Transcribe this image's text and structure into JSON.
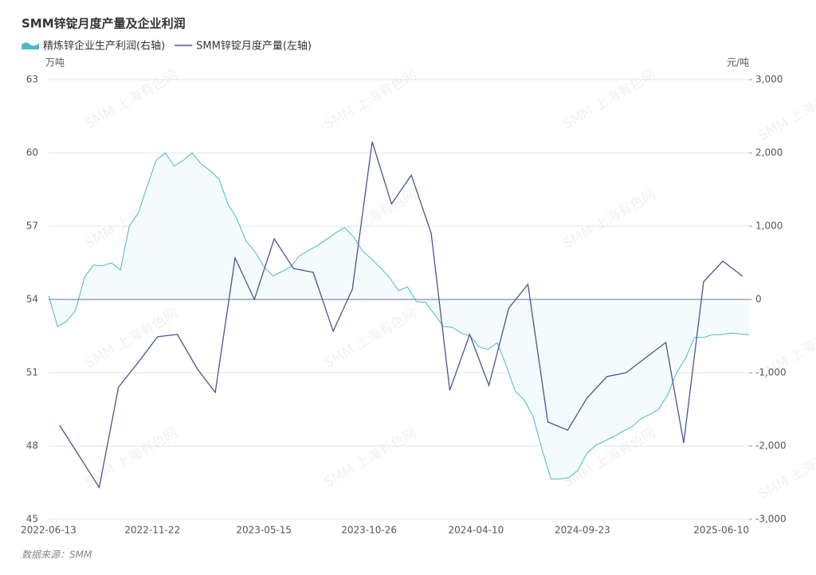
{
  "chart_data": {
    "type": "combo",
    "title": "SMM锌锭月度产量及企业利润",
    "y_label": "万吨",
    "y2_label": "元/吨",
    "source": "数据来源：SMM",
    "watermark": "SMM 上海有色网",
    "xlim": [
      "2022-06-13",
      "2025-06-10"
    ],
    "xticks": [
      "2022-06-13",
      "2022-11-22",
      "2023-05-15",
      "2023-10-26",
      "2024-04-10",
      "2024-09-23",
      "2025-06-10"
    ],
    "ylim": [
      45,
      63
    ],
    "yticks": [
      45,
      48,
      51,
      54,
      57,
      60,
      63
    ],
    "y2lim": [
      -3000,
      3000
    ],
    "y2ticks": [
      {
        "value": -3000,
        "label": "-3,000"
      },
      {
        "value": -2000,
        "label": "-2,000"
      },
      {
        "value": -1000,
        "label": "-1,000"
      },
      0,
      {
        "value": 1000,
        "label": "1,000"
      },
      {
        "value": 2000,
        "label": "2,000"
      },
      {
        "value": 3000,
        "label": "3,000"
      }
    ],
    "grid": true,
    "series": [
      {
        "name": "精炼锌企业生产利润(右轴)",
        "type": "area",
        "axis": "y2",
        "color": "#4bb8c8",
        "x": [
          "2022-06-13",
          "2022-06-27",
          "2022-07-11",
          "2022-07-25",
          "2022-08-08",
          "2022-08-22",
          "2022-09-05",
          "2022-09-19",
          "2022-10-03",
          "2022-10-17",
          "2022-10-31",
          "2022-11-14",
          "2022-11-28",
          "2022-12-12",
          "2022-12-26",
          "2023-01-09",
          "2023-01-23",
          "2023-02-06",
          "2023-02-20",
          "2023-03-06",
          "2023-03-20",
          "2023-04-03",
          "2023-04-17",
          "2023-05-01",
          "2023-05-15",
          "2023-05-29",
          "2023-06-12",
          "2023-06-26",
          "2023-07-10",
          "2023-07-24",
          "2023-08-07",
          "2023-08-21",
          "2023-09-04",
          "2023-09-18",
          "2023-10-02",
          "2023-10-16",
          "2023-10-30",
          "2023-11-13",
          "2023-11-27",
          "2023-12-11",
          "2023-12-25",
          "2024-01-08",
          "2024-01-22",
          "2024-02-05",
          "2024-02-19",
          "2024-03-04",
          "2024-03-18",
          "2024-04-01",
          "2024-04-15",
          "2024-04-29",
          "2024-05-13",
          "2024-05-27",
          "2024-06-10",
          "2024-06-24",
          "2024-07-08",
          "2024-07-22",
          "2024-08-05",
          "2024-08-19",
          "2024-09-02",
          "2024-09-16",
          "2024-09-30",
          "2024-10-14",
          "2024-10-28",
          "2024-11-11",
          "2024-11-25",
          "2024-12-09",
          "2024-12-23",
          "2025-01-06",
          "2025-01-20",
          "2025-02-03",
          "2025-02-17",
          "2025-03-03",
          "2025-03-17",
          "2025-03-31",
          "2025-04-14",
          "2025-04-28",
          "2025-05-12",
          "2025-05-26",
          "2025-06-10"
        ],
        "values": [
          50,
          -370,
          -300,
          -150,
          300,
          470,
          460,
          500,
          400,
          1000,
          1180,
          1550,
          1900,
          2000,
          1820,
          1900,
          2000,
          1850,
          1760,
          1640,
          1300,
          1100,
          800,
          650,
          450,
          320,
          380,
          450,
          600,
          670,
          740,
          820,
          910,
          980,
          850,
          660,
          550,
          430,
          300,
          120,
          170,
          -30,
          -40,
          -200,
          -370,
          -380,
          -460,
          -500,
          -650,
          -680,
          -590,
          -900,
          -1250,
          -1370,
          -1600,
          -2050,
          -2450,
          -2450,
          -2430,
          -2330,
          -2100,
          -1990,
          -1930,
          -1870,
          -1800,
          -1740,
          -1630,
          -1570,
          -1500,
          -1300,
          -1000,
          -800,
          -520,
          -520,
          -480,
          -480,
          -460,
          -470,
          -480
        ]
      },
      {
        "name": "SMM锌锭月度产量(左轴)",
        "type": "line",
        "axis": "y",
        "color": "#4a5590",
        "x": [
          "2022-06-30",
          "2022-07-31",
          "2022-08-31",
          "2022-09-30",
          "2022-10-31",
          "2022-11-30",
          "2022-12-31",
          "2023-01-31",
          "2023-02-28",
          "2023-03-31",
          "2023-04-30",
          "2023-05-31",
          "2023-06-30",
          "2023-07-31",
          "2023-08-31",
          "2023-09-30",
          "2023-10-31",
          "2023-11-30",
          "2023-12-31",
          "2024-01-31",
          "2024-02-29",
          "2024-03-31",
          "2024-04-30",
          "2024-05-31",
          "2024-06-30",
          "2024-07-31",
          "2024-08-31",
          "2024-09-30",
          "2024-10-31",
          "2024-11-30",
          "2024-12-31",
          "2025-01-31",
          "2025-02-28",
          "2025-03-31",
          "2025-04-30",
          "2025-05-31"
        ],
        "values": [
          48.85,
          47.58,
          46.3,
          50.41,
          51.43,
          52.47,
          52.57,
          51.16,
          50.19,
          55.7,
          54.0,
          56.48,
          55.27,
          55.11,
          52.7,
          54.42,
          60.46,
          57.91,
          59.09,
          56.71,
          50.28,
          52.57,
          50.48,
          53.64,
          54.62,
          48.98,
          48.65,
          49.96,
          50.84,
          51.0,
          51.62,
          52.24,
          48.13,
          54.72,
          55.57,
          54.95
        ]
      }
    ]
  }
}
